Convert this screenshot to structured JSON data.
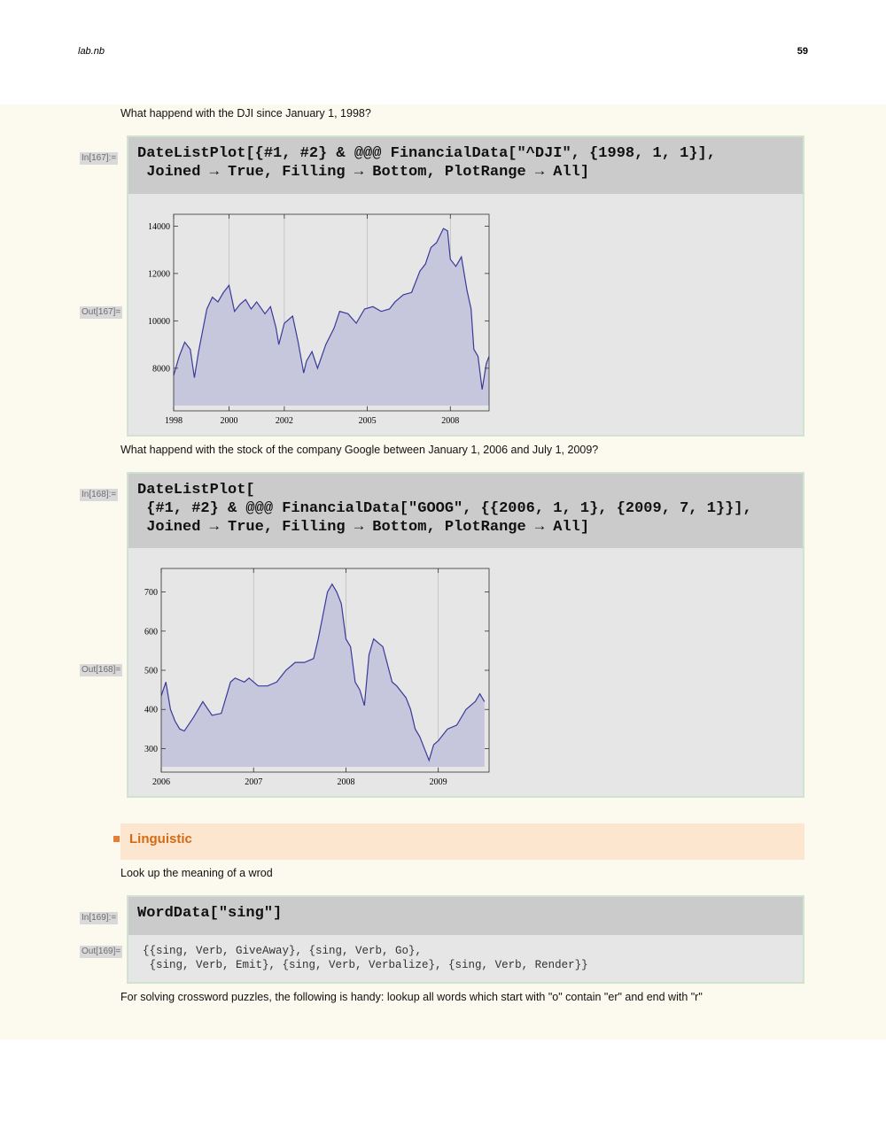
{
  "header": {
    "notebook": "lab.nb",
    "page": "59"
  },
  "texts": {
    "q1": "What happend with the DJI since January 1, 1998?",
    "q2": "What happend with the stock of the company Google between January 1, 2006 and July 1, 2009?",
    "q3": "Look up the meaning of a wrod",
    "q4": "For solving crossword puzzles, the following is handy: lookup all words which start with \"o\" contain \"er\" and end with \"r\""
  },
  "cells": [
    {
      "in_label": "In[167]:=",
      "out_label": "Out[167]=",
      "code": "DateListPlot[{#1, #2} & @@@ FinancialData[\"^DJI\", {1998, 1, 1}],\n Joined → True, Filling → Bottom, PlotRange → All]"
    },
    {
      "in_label": "In[168]:=",
      "out_label": "Out[168]=",
      "code": "DateListPlot[\n {#1, #2} & @@@ FinancialData[\"GOOG\", {{2006, 1, 1}, {2009, 7, 1}}],\n Joined → True, Filling → Bottom, PlotRange → All]"
    },
    {
      "in_label": "In[169]:=",
      "out_label": "Out[169]=",
      "code": "WordData[\"sing\"]",
      "output": "{{sing, Verb, GiveAway}, {sing, Verb, Go},\n {sing, Verb, Emit}, {sing, Verb, Verbalize}, {sing, Verb, Render}}"
    }
  ],
  "section": {
    "title": "Linguistic"
  },
  "colors": {
    "line": "#3a3a9a",
    "fill": "#c6c6dd",
    "plot_bg": "#e6e6e6"
  },
  "chart_data": [
    {
      "type": "area",
      "title": "",
      "xlabel": "",
      "ylabel": "",
      "xlim": [
        1998.0,
        2009.4
      ],
      "ylim": [
        6200,
        14500
      ],
      "x_ticks": [
        "1998",
        "2000",
        "2002",
        "2005",
        "2008"
      ],
      "x_tick_values": [
        1998,
        2000,
        2002,
        2005,
        2008
      ],
      "y_ticks": [
        "8000",
        "10000",
        "12000",
        "14000"
      ],
      "y_tick_values": [
        8000,
        10000,
        12000,
        14000
      ],
      "series": [
        {
          "name": "^DJI",
          "x": [
            1998.0,
            1998.2,
            1998.4,
            1998.6,
            1998.75,
            1998.9,
            1999.0,
            1999.2,
            1999.4,
            1999.6,
            1999.8,
            2000.0,
            2000.2,
            2000.4,
            2000.6,
            2000.8,
            2001.0,
            2001.3,
            2001.5,
            2001.7,
            2001.8,
            2002.0,
            2002.3,
            2002.5,
            2002.7,
            2002.8,
            2003.0,
            2003.2,
            2003.5,
            2003.8,
            2004.0,
            2004.3,
            2004.6,
            2004.9,
            2005.2,
            2005.5,
            2005.8,
            2006.0,
            2006.3,
            2006.6,
            2006.9,
            2007.1,
            2007.3,
            2007.5,
            2007.75,
            2007.9,
            2008.0,
            2008.2,
            2008.4,
            2008.6,
            2008.75,
            2008.85,
            2009.0,
            2009.15,
            2009.3,
            2009.4
          ],
          "values": [
            7700,
            8500,
            9100,
            8800,
            7600,
            8700,
            9300,
            10500,
            11000,
            10800,
            11200,
            11500,
            10400,
            10700,
            10900,
            10500,
            10800,
            10300,
            10600,
            9700,
            9000,
            9900,
            10200,
            9100,
            7800,
            8300,
            8700,
            8000,
            9000,
            9700,
            10400,
            10300,
            9900,
            10500,
            10600,
            10400,
            10500,
            10800,
            11100,
            11200,
            12100,
            12400,
            13100,
            13300,
            13900,
            13800,
            12600,
            12300,
            12700,
            11300,
            10500,
            8800,
            8500,
            7100,
            8200,
            8500
          ]
        }
      ]
    },
    {
      "type": "area",
      "title": "",
      "xlabel": "",
      "ylabel": "",
      "xlim": [
        2006.0,
        2009.55
      ],
      "ylim": [
        240,
        760
      ],
      "x_ticks": [
        "2006",
        "2007",
        "2008",
        "2009"
      ],
      "x_tick_values": [
        2006,
        2007,
        2008,
        2009
      ],
      "y_ticks": [
        "300",
        "400",
        "500",
        "600",
        "700"
      ],
      "y_tick_values": [
        300,
        400,
        500,
        600,
        700
      ],
      "series": [
        {
          "name": "GOOG",
          "x": [
            2006.0,
            2006.05,
            2006.1,
            2006.15,
            2006.2,
            2006.25,
            2006.35,
            2006.45,
            2006.55,
            2006.65,
            2006.75,
            2006.8,
            2006.9,
            2006.95,
            2007.05,
            2007.15,
            2007.25,
            2007.35,
            2007.45,
            2007.55,
            2007.65,
            2007.7,
            2007.75,
            2007.8,
            2007.85,
            2007.9,
            2007.95,
            2008.0,
            2008.05,
            2008.1,
            2008.15,
            2008.2,
            2008.25,
            2008.3,
            2008.35,
            2008.4,
            2008.5,
            2008.55,
            2008.65,
            2008.7,
            2008.75,
            2008.8,
            2008.85,
            2008.9,
            2008.95,
            2009.0,
            2009.1,
            2009.2,
            2009.3,
            2009.4,
            2009.45,
            2009.5
          ],
          "values": [
            435,
            470,
            400,
            370,
            350,
            345,
            380,
            420,
            385,
            390,
            470,
            480,
            470,
            480,
            460,
            460,
            470,
            500,
            520,
            520,
            530,
            580,
            640,
            700,
            720,
            700,
            670,
            580,
            560,
            470,
            450,
            410,
            540,
            580,
            570,
            560,
            470,
            460,
            430,
            400,
            350,
            330,
            300,
            270,
            310,
            320,
            350,
            360,
            400,
            420,
            440,
            420
          ]
        }
      ]
    }
  ]
}
